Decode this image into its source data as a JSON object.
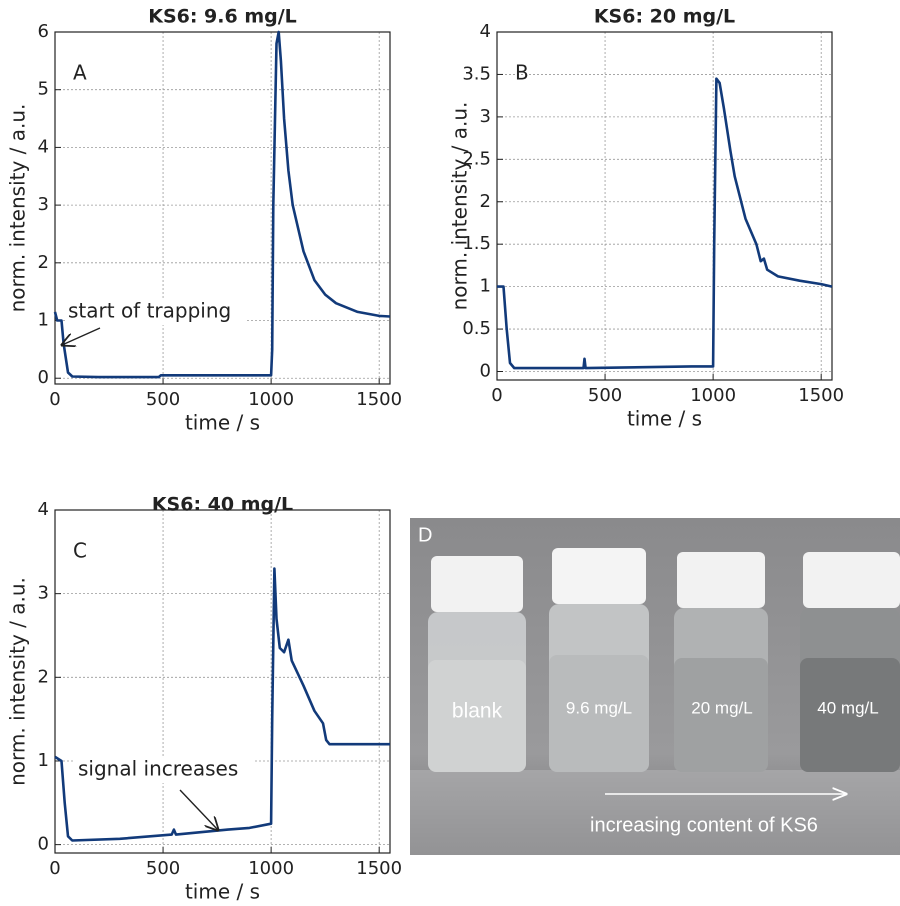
{
  "chart_data": [
    {
      "type": "line",
      "title": "KS6: 9.6 mg/L",
      "panel": "A",
      "x_label": "time / s",
      "y_label": "norm. intensity / a.u.",
      "annotation": "start of trapping",
      "color": "#123a7a",
      "grid": true,
      "xlim": [
        0,
        1550
      ],
      "ylim": [
        -0.1,
        6
      ],
      "xticks": [
        0,
        500,
        1000,
        1500
      ],
      "yticks": [
        0,
        1,
        2,
        3,
        4,
        5,
        6
      ],
      "x": [
        0,
        10,
        30,
        40,
        60,
        80,
        200,
        480,
        490,
        1000,
        1005,
        1010,
        1025,
        1035,
        1045,
        1060,
        1080,
        1100,
        1150,
        1200,
        1250,
        1300,
        1400,
        1500,
        1550
      ],
      "values": [
        1.15,
        1.0,
        1.0,
        0.6,
        0.1,
        0.03,
        0.02,
        0.02,
        0.05,
        0.05,
        0.5,
        3.0,
        5.8,
        6.0,
        5.5,
        4.5,
        3.6,
        3.0,
        2.2,
        1.7,
        1.45,
        1.3,
        1.15,
        1.08,
        1.07
      ]
    },
    {
      "type": "line",
      "title": "KS6: 20 mg/L",
      "panel": "B",
      "x_label": "time / s",
      "y_label": "norm. intensity / a.u.",
      "color": "#123a7a",
      "grid": true,
      "xlim": [
        0,
        1550
      ],
      "ylim": [
        -0.1,
        4
      ],
      "xticks": [
        0,
        500,
        1000,
        1500
      ],
      "yticks": [
        0,
        0.5,
        1,
        1.5,
        2,
        2.5,
        3,
        3.5,
        4
      ],
      "x": [
        0,
        30,
        45,
        60,
        80,
        400,
        405,
        410,
        900,
        1000,
        1005,
        1015,
        1030,
        1050,
        1080,
        1100,
        1150,
        1200,
        1220,
        1235,
        1250,
        1300,
        1400,
        1500,
        1550
      ],
      "values": [
        1.0,
        1.0,
        0.5,
        0.1,
        0.04,
        0.04,
        0.15,
        0.04,
        0.06,
        0.06,
        1.5,
        3.45,
        3.4,
        3.1,
        2.6,
        2.3,
        1.8,
        1.5,
        1.3,
        1.33,
        1.2,
        1.12,
        1.07,
        1.03,
        1.0
      ]
    },
    {
      "type": "line",
      "title": "KS6: 40 mg/L",
      "panel": "C",
      "x_label": "time / s",
      "y_label": "norm. intensity / a.u.",
      "annotation": "signal increases",
      "color": "#123a7a",
      "grid": true,
      "xlim": [
        0,
        1550
      ],
      "ylim": [
        -0.1,
        4
      ],
      "xticks": [
        0,
        500,
        1000,
        1500
      ],
      "yticks": [
        0,
        1,
        2,
        3,
        4
      ],
      "x": [
        0,
        30,
        45,
        60,
        80,
        300,
        540,
        550,
        560,
        800,
        900,
        1000,
        1005,
        1015,
        1025,
        1040,
        1060,
        1080,
        1095,
        1150,
        1200,
        1240,
        1255,
        1270,
        1400,
        1550
      ],
      "values": [
        1.05,
        1.0,
        0.5,
        0.1,
        0.05,
        0.07,
        0.12,
        0.18,
        0.12,
        0.18,
        0.2,
        0.25,
        1.5,
        3.3,
        2.7,
        2.35,
        2.3,
        2.45,
        2.2,
        1.9,
        1.6,
        1.45,
        1.25,
        1.2,
        1.2,
        1.2
      ]
    }
  ],
  "photo": {
    "panel": "D",
    "vials": [
      "blank",
      "9.6 mg/L",
      "20 mg/L",
      "40 mg/L"
    ],
    "caption": "increasing content of KS6"
  }
}
